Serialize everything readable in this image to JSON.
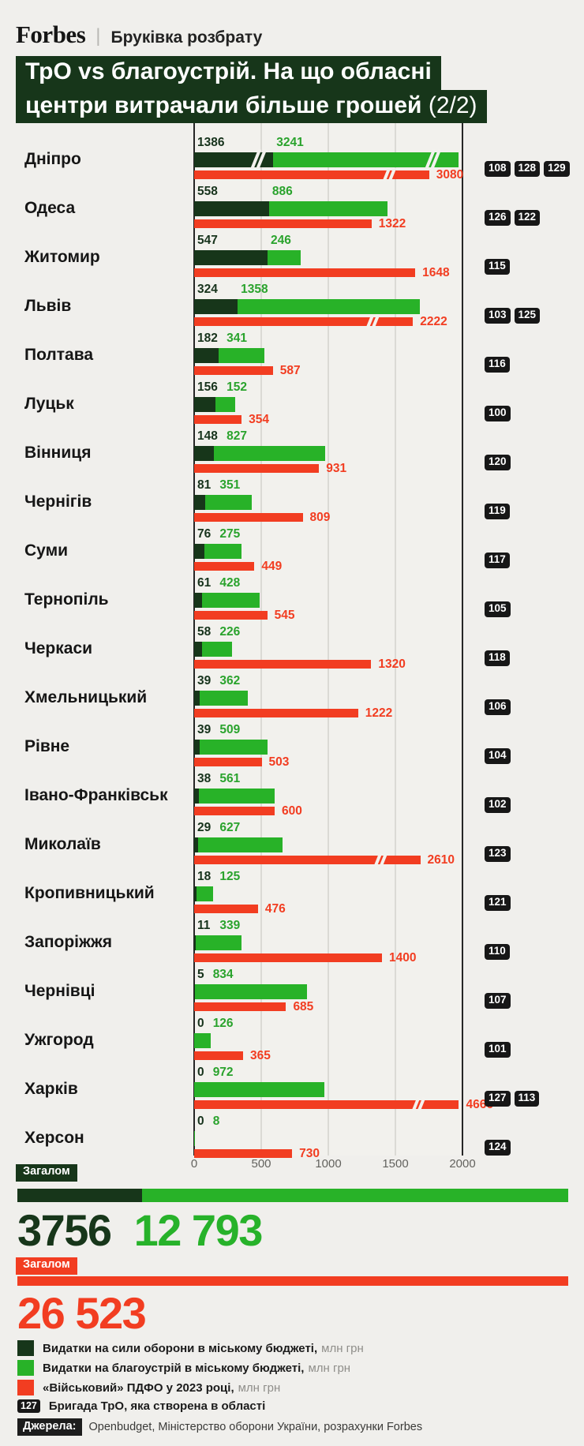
{
  "header": {
    "brand": "Forbes",
    "separator": "|",
    "rubric": "Бруківка розбрату"
  },
  "title": {
    "line1": "ТрО vs благоустрій. На що обласні",
    "line2": "центри витрачали більше грошей",
    "page": "(2/2)"
  },
  "chart_data": {
    "type": "bar",
    "orientation": "horizontal",
    "unit": "млн грн",
    "axis": {
      "ticks": [
        0,
        500,
        1000,
        1500,
        2000
      ],
      "max": 2000
    },
    "series_names": [
      "Видатки на сили оборони в міському бюджеті",
      "Видатки на благоустрій в міському бюджеті",
      "«Військовий» ПДФО у 2023 році"
    ],
    "rows": [
      {
        "city": "Дніпро",
        "defense": 1386,
        "improvement": 3241,
        "pdfo": 3080,
        "brigades": [
          "108",
          "128",
          "129"
        ]
      },
      {
        "city": "Одеса",
        "defense": 558,
        "improvement": 886,
        "pdfo": 1322,
        "brigades": [
          "126",
          "122"
        ]
      },
      {
        "city": "Житомир",
        "defense": 547,
        "improvement": 246,
        "pdfo": 1648,
        "brigades": [
          "115"
        ]
      },
      {
        "city": "Львів",
        "defense": 324,
        "improvement": 1358,
        "pdfo": 2222,
        "brigades": [
          "103",
          "125"
        ]
      },
      {
        "city": "Полтава",
        "defense": 182,
        "improvement": 341,
        "pdfo": 587,
        "brigades": [
          "116"
        ]
      },
      {
        "city": "Луцьк",
        "defense": 156,
        "improvement": 152,
        "pdfo": 354,
        "brigades": [
          "100"
        ]
      },
      {
        "city": "Вінниця",
        "defense": 148,
        "improvement": 827,
        "pdfo": 931,
        "brigades": [
          "120"
        ]
      },
      {
        "city": "Чернігів",
        "defense": 81,
        "improvement": 351,
        "pdfo": 809,
        "brigades": [
          "119"
        ]
      },
      {
        "city": "Суми",
        "defense": 76,
        "improvement": 275,
        "pdfo": 449,
        "brigades": [
          "117"
        ]
      },
      {
        "city": "Тернопіль",
        "defense": 61,
        "improvement": 428,
        "pdfo": 545,
        "brigades": [
          "105"
        ]
      },
      {
        "city": "Черкаси",
        "defense": 58,
        "improvement": 226,
        "pdfo": 1320,
        "brigades": [
          "118"
        ]
      },
      {
        "city": "Хмельницький",
        "defense": 39,
        "improvement": 362,
        "pdfo": 1222,
        "brigades": [
          "106"
        ]
      },
      {
        "city": "Рівне",
        "defense": 39,
        "improvement": 509,
        "pdfo": 503,
        "brigades": [
          "104"
        ]
      },
      {
        "city": "Івано-Франківськ",
        "defense": 38,
        "improvement": 561,
        "pdfo": 600,
        "brigades": [
          "102"
        ]
      },
      {
        "city": "Миколаїв",
        "defense": 29,
        "improvement": 627,
        "pdfo": 2610,
        "brigades": [
          "123"
        ]
      },
      {
        "city": "Кропивницький",
        "defense": 18,
        "improvement": 125,
        "pdfo": 476,
        "brigades": [
          "121"
        ]
      },
      {
        "city": "Запоріжжя",
        "defense": 11,
        "improvement": 339,
        "pdfo": 1400,
        "brigades": [
          "110"
        ]
      },
      {
        "city": "Чернівці",
        "defense": 5,
        "improvement": 834,
        "pdfo": 685,
        "brigades": [
          "107"
        ]
      },
      {
        "city": "Ужгород",
        "defense": 0,
        "improvement": 126,
        "pdfo": 365,
        "brigades": [
          "101"
        ]
      },
      {
        "city": "Харків",
        "defense": 0,
        "improvement": 972,
        "pdfo": 4666,
        "brigades": [
          "127",
          "113"
        ]
      },
      {
        "city": "Херсон",
        "defense": 0,
        "improvement": 8,
        "pdfo": 730,
        "brigades": [
          "124"
        ]
      }
    ],
    "totals": {
      "label": "Загалом",
      "defense": 3756,
      "defense_text": "3756",
      "improvement": 12793,
      "improvement_text": "12 793",
      "pdfo": 26523,
      "pdfo_text": "26 523"
    }
  },
  "legend": [
    {
      "label": "Видатки на сили оборони в міському бюджеті,",
      "unit": "млн грн",
      "swatch": "defense"
    },
    {
      "label": "Видатки на благоустрій в міському бюджеті,",
      "unit": "млн грн",
      "swatch": "improvement"
    },
    {
      "label": "«Військовий» ПДФО у 2023 році,",
      "unit": "млн грн",
      "swatch": "pdfo"
    }
  ],
  "brigade_legend": {
    "badge": "127",
    "text": "Бригада ТрО, яка створена в області"
  },
  "sources": {
    "label": "Джерела:",
    "text": "Openbudget, Міністерство оборони України, розрахунки Forbes"
  },
  "colors": {
    "defense": "#17361a",
    "improvement": "#28b228",
    "pdfo": "#f23d21"
  }
}
